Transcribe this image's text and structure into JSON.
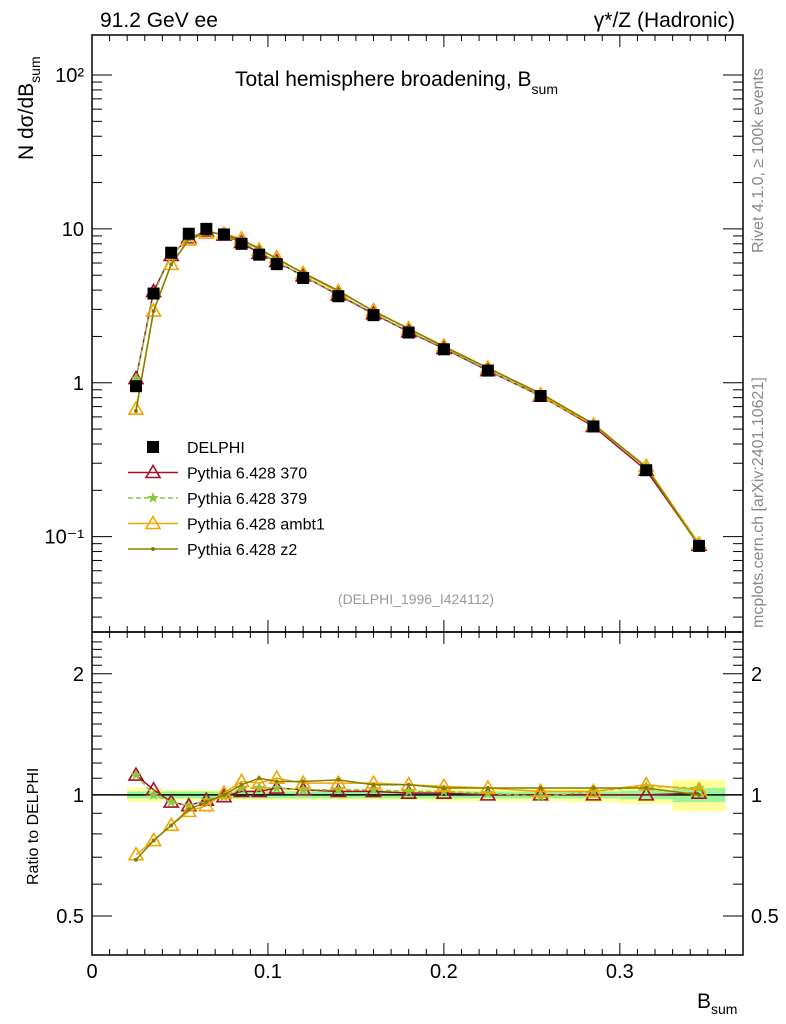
{
  "header": {
    "left": "91.2 GeV ee",
    "right": "γ*/Z (Hadronic)"
  },
  "side": {
    "rivet": "Rivet 4.1.0, ≥ 100k events",
    "mcplots": "mcplots.cern.ch [arXiv:2401.10621]"
  },
  "chart_data": [
    {
      "type": "line",
      "title": "Total hemisphere broadening, B",
      "title_sub": "sum",
      "ylabel": "N  dσ/dB",
      "ylabel_sub": "sum",
      "xlabel": "B",
      "xlabel_sub": "sum",
      "analysis_id": "(DELPHI_1996_I424112)",
      "yscale": "log",
      "xlim": [
        0,
        0.37
      ],
      "ylim": [
        0.024,
        182
      ],
      "ytick_labels": {
        "100": "10²",
        "10": "10",
        "1": "1",
        "0.1": "10⁻¹"
      },
      "xtick_labels": [
        "0",
        "0.1",
        "0.2",
        "0.3"
      ],
      "legend_position": "center-left",
      "x": [
        0.025,
        0.035,
        0.045,
        0.055,
        0.065,
        0.075,
        0.085,
        0.095,
        0.105,
        0.12,
        0.14,
        0.16,
        0.18,
        0.2,
        0.225,
        0.255,
        0.285,
        0.315,
        0.345
      ],
      "data": {
        "name": "DELPHI",
        "color": "#000000",
        "values": [
          0.95,
          3.8,
          7.0,
          9.3,
          10.0,
          9.2,
          8.0,
          6.8,
          5.9,
          4.8,
          3.65,
          2.75,
          2.12,
          1.65,
          1.2,
          0.82,
          0.52,
          0.27,
          0.087
        ]
      },
      "series": [
        {
          "name": "Pythia 6.428 370",
          "color": "#a50f2a",
          "marker": "open-triangle",
          "dash": false,
          "ratio": [
            1.12,
            1.03,
            0.96,
            0.94,
            0.97,
            0.99,
            1.02,
            1.02,
            1.04,
            1.03,
            1.02,
            1.02,
            1.01,
            1.01,
            1.0,
            1.0,
            1.0,
            1.0,
            1.01
          ]
        },
        {
          "name": "Pythia 6.428 379",
          "color": "#8cc63f",
          "marker": "star",
          "dash": true,
          "ratio": [
            1.12,
            1.0,
            0.96,
            0.94,
            0.97,
            0.99,
            1.04,
            1.04,
            1.04,
            1.03,
            1.03,
            1.03,
            1.02,
            1.02,
            1.01,
            0.99,
            1.02,
            1.05,
            1.04
          ]
        },
        {
          "name": "Pythia 6.428 ambt1",
          "color": "#f5a300",
          "marker": "open-triangle",
          "dash": false,
          "ratio": [
            0.71,
            0.77,
            0.84,
            0.91,
            0.94,
            1.01,
            1.08,
            1.07,
            1.1,
            1.07,
            1.07,
            1.07,
            1.06,
            1.05,
            1.04,
            1.02,
            1.02,
            1.06,
            1.03
          ]
        },
        {
          "name": "Pythia 6.428 z2",
          "color": "#808000",
          "marker": "dot",
          "dash": false,
          "ratio": [
            0.69,
            0.77,
            0.84,
            0.92,
            0.96,
            1.0,
            1.06,
            1.1,
            1.08,
            1.08,
            1.09,
            1.06,
            1.06,
            1.04,
            1.04,
            1.04,
            1.04,
            1.04,
            1.0
          ]
        }
      ]
    },
    {
      "type": "line",
      "ylabel": "Ratio to DELPHI",
      "yscale": "log",
      "ylim": [
        0.4,
        2.54
      ],
      "ytick_labels": [
        "0.5",
        "1",
        "2"
      ],
      "band_stat": [
        0.02,
        0.02,
        0.02,
        0.02,
        0.02,
        0.02,
        0.02,
        0.02,
        0.02,
        0.02,
        0.02,
        0.02,
        0.02,
        0.02,
        0.02,
        0.02,
        0.02,
        0.025,
        0.04
      ],
      "band_total": [
        0.04,
        0.04,
        0.03,
        0.03,
        0.03,
        0.03,
        0.03,
        0.03,
        0.03,
        0.03,
        0.03,
        0.03,
        0.03,
        0.035,
        0.035,
        0.035,
        0.04,
        0.05,
        0.09
      ]
    }
  ]
}
